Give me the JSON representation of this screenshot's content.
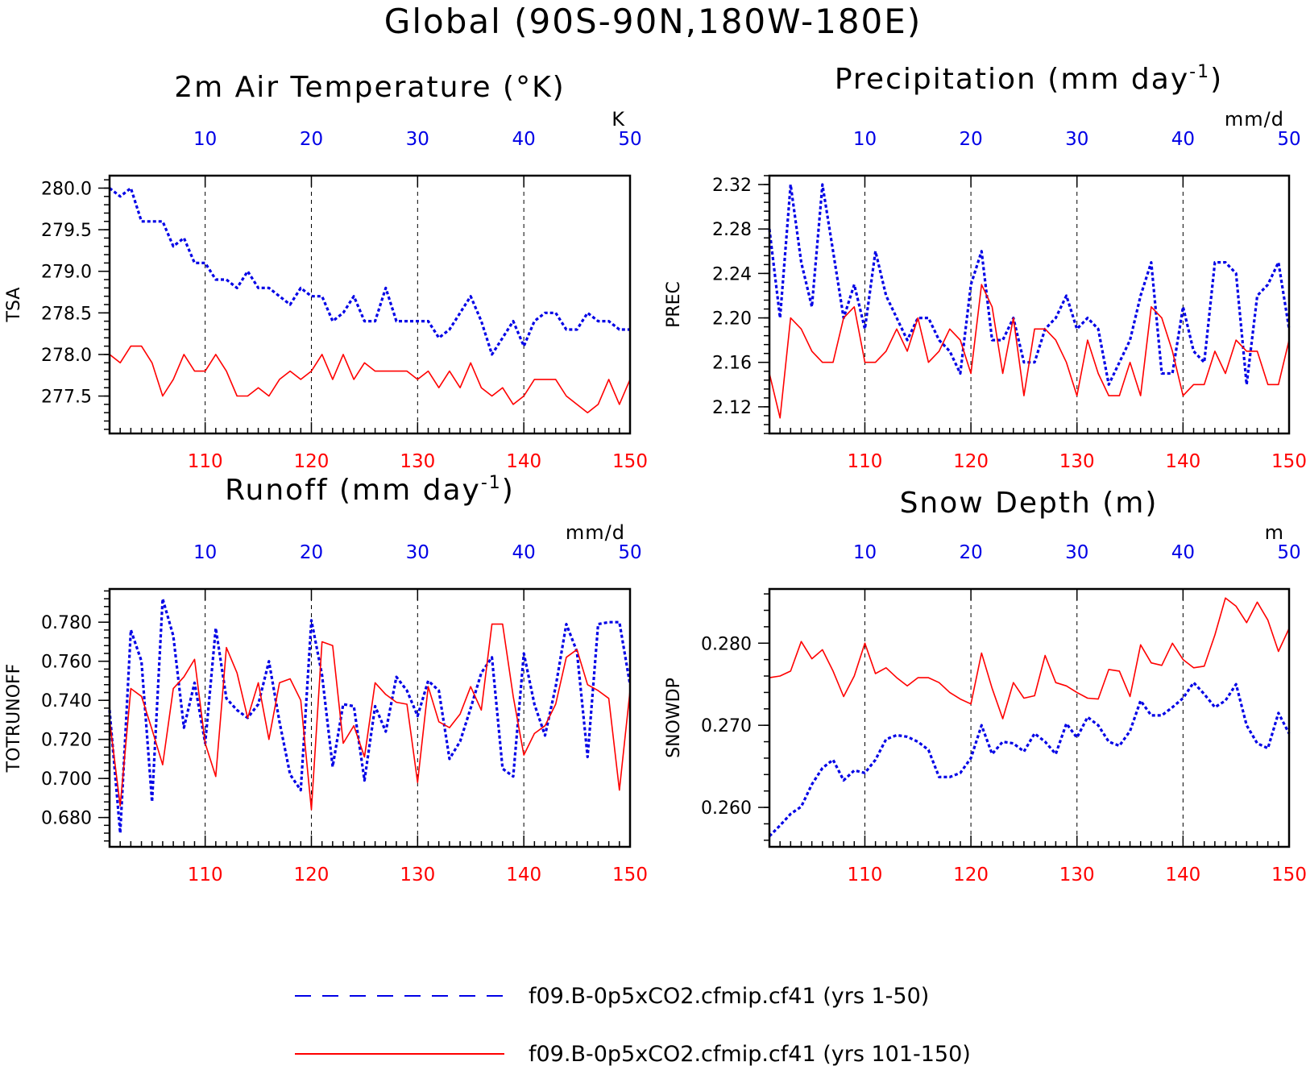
{
  "main_title": "Global (90S-90N,180W-180E)",
  "colors": {
    "blue": "#0000e6",
    "red": "#ff0000"
  },
  "legend": [
    {
      "label": "f09.B-0p5xCO2.cfmip.cf41 (yrs 1-50)",
      "color": "#0000e6",
      "style": "dashed"
    },
    {
      "label": "f09.B-0p5xCO2.cfmip.cf41 (yrs 101-150)",
      "color": "#ff0000",
      "style": "solid"
    }
  ],
  "chart_data": [
    {
      "id": "tsa",
      "type": "line",
      "title": "2m Air Temperature (°K)",
      "ylabel": "TSA",
      "units": "K",
      "ylim": [
        277.05,
        280.15
      ],
      "yticks": [
        277.5,
        278.0,
        278.5,
        279.0,
        279.5,
        280.0
      ],
      "ytick_labels": [
        "277.5",
        "278.0",
        "278.5",
        "279.0",
        "279.5",
        "280.0"
      ],
      "yminor": 0.1,
      "xlim_bottom": [
        101,
        150
      ],
      "xticks_bottom": [
        110,
        120,
        130,
        140,
        150
      ],
      "xlim_top": [
        1,
        50
      ],
      "xticks_top": [
        10,
        20,
        30,
        40,
        50
      ],
      "grid_x": true,
      "series": [
        {
          "color": "#0000e6",
          "style": "dashed",
          "values": [
            280.0,
            279.9,
            280.0,
            279.6,
            279.6,
            279.6,
            279.3,
            279.4,
            279.1,
            279.1,
            278.9,
            278.9,
            278.8,
            279.0,
            278.8,
            278.8,
            278.7,
            278.6,
            278.8,
            278.7,
            278.7,
            278.4,
            278.5,
            278.7,
            278.4,
            278.4,
            278.8,
            278.4,
            278.4,
            278.4,
            278.4,
            278.2,
            278.3,
            278.5,
            278.7,
            278.4,
            278.0,
            278.2,
            278.4,
            278.1,
            278.4,
            278.5,
            278.5,
            278.3,
            278.3,
            278.5,
            278.4,
            278.4,
            278.3,
            278.3
          ]
        },
        {
          "color": "#ff0000",
          "style": "solid",
          "values": [
            278.0,
            277.9,
            278.1,
            278.1,
            277.9,
            277.5,
            277.7,
            278.0,
            277.8,
            277.8,
            278.0,
            277.8,
            277.5,
            277.5,
            277.6,
            277.5,
            277.7,
            277.8,
            277.7,
            277.8,
            278.0,
            277.7,
            278.0,
            277.7,
            277.9,
            277.8,
            277.8,
            277.8,
            277.8,
            277.7,
            277.8,
            277.6,
            277.8,
            277.6,
            277.9,
            277.6,
            277.5,
            277.6,
            277.4,
            277.5,
            277.7,
            277.7,
            277.7,
            277.5,
            277.4,
            277.3,
            277.4,
            277.7,
            277.4,
            277.7
          ]
        }
      ]
    },
    {
      "id": "prec",
      "type": "line",
      "title": "Precipitation (mm day",
      "title_sup": "-1",
      "title_end": ")",
      "ylabel": "PREC",
      "units": "mm/d",
      "ylim": [
        2.096,
        2.328
      ],
      "yticks": [
        2.12,
        2.16,
        2.2,
        2.24,
        2.28,
        2.32
      ],
      "ytick_labels": [
        "2.12",
        "2.16",
        "2.20",
        "2.24",
        "2.28",
        "2.32"
      ],
      "yminor": 0.008,
      "xlim_bottom": [
        101,
        150
      ],
      "xticks_bottom": [
        110,
        120,
        130,
        140,
        150
      ],
      "xlim_top": [
        1,
        50
      ],
      "xticks_top": [
        10,
        20,
        30,
        40,
        50
      ],
      "grid_x": true,
      "series": [
        {
          "color": "#0000e6",
          "style": "dashed",
          "values": [
            2.28,
            2.2,
            2.32,
            2.25,
            2.21,
            2.32,
            2.26,
            2.2,
            2.23,
            2.19,
            2.26,
            2.22,
            2.2,
            2.18,
            2.2,
            2.2,
            2.18,
            2.17,
            2.15,
            2.23,
            2.26,
            2.18,
            2.18,
            2.2,
            2.16,
            2.16,
            2.19,
            2.2,
            2.22,
            2.19,
            2.2,
            2.19,
            2.14,
            2.16,
            2.18,
            2.22,
            2.25,
            2.15,
            2.15,
            2.21,
            2.17,
            2.16,
            2.25,
            2.25,
            2.24,
            2.14,
            2.22,
            2.23,
            2.25,
            2.19
          ]
        },
        {
          "color": "#ff0000",
          "style": "solid",
          "values": [
            2.15,
            2.11,
            2.2,
            2.19,
            2.17,
            2.16,
            2.16,
            2.2,
            2.21,
            2.16,
            2.16,
            2.17,
            2.19,
            2.17,
            2.2,
            2.16,
            2.17,
            2.19,
            2.18,
            2.15,
            2.23,
            2.21,
            2.15,
            2.2,
            2.13,
            2.19,
            2.19,
            2.18,
            2.16,
            2.13,
            2.18,
            2.15,
            2.13,
            2.13,
            2.16,
            2.13,
            2.21,
            2.2,
            2.17,
            2.13,
            2.14,
            2.14,
            2.17,
            2.15,
            2.18,
            2.17,
            2.17,
            2.14,
            2.14,
            2.18
          ]
        }
      ]
    },
    {
      "id": "runoff",
      "type": "line",
      "title": "Runoff (mm day",
      "title_sup": "-1",
      "title_end": ")",
      "ylabel": "TOTRUNOFF",
      "units": "mm/d",
      "ylim": [
        0.665,
        0.797
      ],
      "yticks": [
        0.68,
        0.7,
        0.72,
        0.74,
        0.76,
        0.78
      ],
      "ytick_labels": [
        "0.680",
        "0.700",
        "0.720",
        "0.740",
        "0.760",
        "0.780"
      ],
      "yminor": 0.004,
      "xlim_bottom": [
        101,
        150
      ],
      "xticks_bottom": [
        110,
        120,
        130,
        140,
        150
      ],
      "xlim_top": [
        1,
        50
      ],
      "xticks_top": [
        10,
        20,
        30,
        40,
        50
      ],
      "grid_x": true,
      "series": [
        {
          "color": "#0000e6",
          "style": "dashed",
          "values": [
            0.735,
            0.672,
            0.776,
            0.76,
            0.688,
            0.792,
            0.773,
            0.726,
            0.749,
            0.718,
            0.777,
            0.741,
            0.735,
            0.731,
            0.738,
            0.76,
            0.729,
            0.702,
            0.694,
            0.781,
            0.753,
            0.706,
            0.738,
            0.737,
            0.699,
            0.737,
            0.724,
            0.752,
            0.745,
            0.732,
            0.75,
            0.745,
            0.71,
            0.719,
            0.736,
            0.754,
            0.762,
            0.705,
            0.701,
            0.764,
            0.738,
            0.722,
            0.747,
            0.779,
            0.765,
            0.711,
            0.779,
            0.78,
            0.78,
            0.748
          ]
        },
        {
          "color": "#ff0000",
          "style": "solid",
          "values": [
            0.73,
            0.686,
            0.746,
            0.742,
            0.725,
            0.707,
            0.746,
            0.752,
            0.761,
            0.718,
            0.701,
            0.767,
            0.754,
            0.731,
            0.749,
            0.72,
            0.749,
            0.751,
            0.74,
            0.684,
            0.77,
            0.768,
            0.718,
            0.727,
            0.711,
            0.749,
            0.743,
            0.739,
            0.738,
            0.698,
            0.747,
            0.729,
            0.726,
            0.733,
            0.747,
            0.735,
            0.779,
            0.779,
            0.742,
            0.712,
            0.723,
            0.727,
            0.738,
            0.762,
            0.766,
            0.748,
            0.745,
            0.741,
            0.694,
            0.745
          ]
        }
      ]
    },
    {
      "id": "snowdp",
      "type": "line",
      "title": "Snow Depth (m)",
      "ylabel": "SNOWDP",
      "units": "m",
      "ylim": [
        0.2552,
        0.2866
      ],
      "yticks": [
        0.26,
        0.27,
        0.28
      ],
      "ytick_labels": [
        "0.260",
        "0.270",
        "0.280"
      ],
      "yminor": 0.002,
      "xlim_bottom": [
        101,
        150
      ],
      "xticks_bottom": [
        110,
        120,
        130,
        140,
        150
      ],
      "xlim_top": [
        1,
        50
      ],
      "xticks_top": [
        10,
        20,
        30,
        40,
        50
      ],
      "grid_x": true,
      "series": [
        {
          "color": "#0000e6",
          "style": "dashed",
          "values": [
            0.2565,
            0.2578,
            0.2592,
            0.2601,
            0.2628,
            0.2648,
            0.2658,
            0.2633,
            0.2645,
            0.2642,
            0.2658,
            0.2683,
            0.2688,
            0.2686,
            0.268,
            0.267,
            0.2637,
            0.2637,
            0.2642,
            0.266,
            0.27,
            0.2665,
            0.268,
            0.2678,
            0.2668,
            0.269,
            0.268,
            0.2665,
            0.2702,
            0.2685,
            0.271,
            0.27,
            0.268,
            0.2675,
            0.2693,
            0.273,
            0.2712,
            0.2712,
            0.2722,
            0.2733,
            0.2752,
            0.2738,
            0.2722,
            0.273,
            0.275,
            0.27,
            0.2678,
            0.2672,
            0.2715,
            0.269
          ]
        },
        {
          "color": "#ff0000",
          "style": "solid",
          "values": [
            0.2758,
            0.276,
            0.2766,
            0.2802,
            0.2781,
            0.2792,
            0.2766,
            0.2735,
            0.276,
            0.28,
            0.2763,
            0.277,
            0.2758,
            0.2748,
            0.2758,
            0.2758,
            0.2752,
            0.274,
            0.2732,
            0.2726,
            0.2788,
            0.2745,
            0.2708,
            0.2752,
            0.2733,
            0.2736,
            0.2785,
            0.2752,
            0.2748,
            0.274,
            0.2733,
            0.2732,
            0.2768,
            0.2766,
            0.2735,
            0.2798,
            0.2776,
            0.2773,
            0.28,
            0.278,
            0.277,
            0.2772,
            0.281,
            0.2855,
            0.2845,
            0.2825,
            0.285,
            0.2828,
            0.279,
            0.2818
          ]
        }
      ]
    }
  ]
}
